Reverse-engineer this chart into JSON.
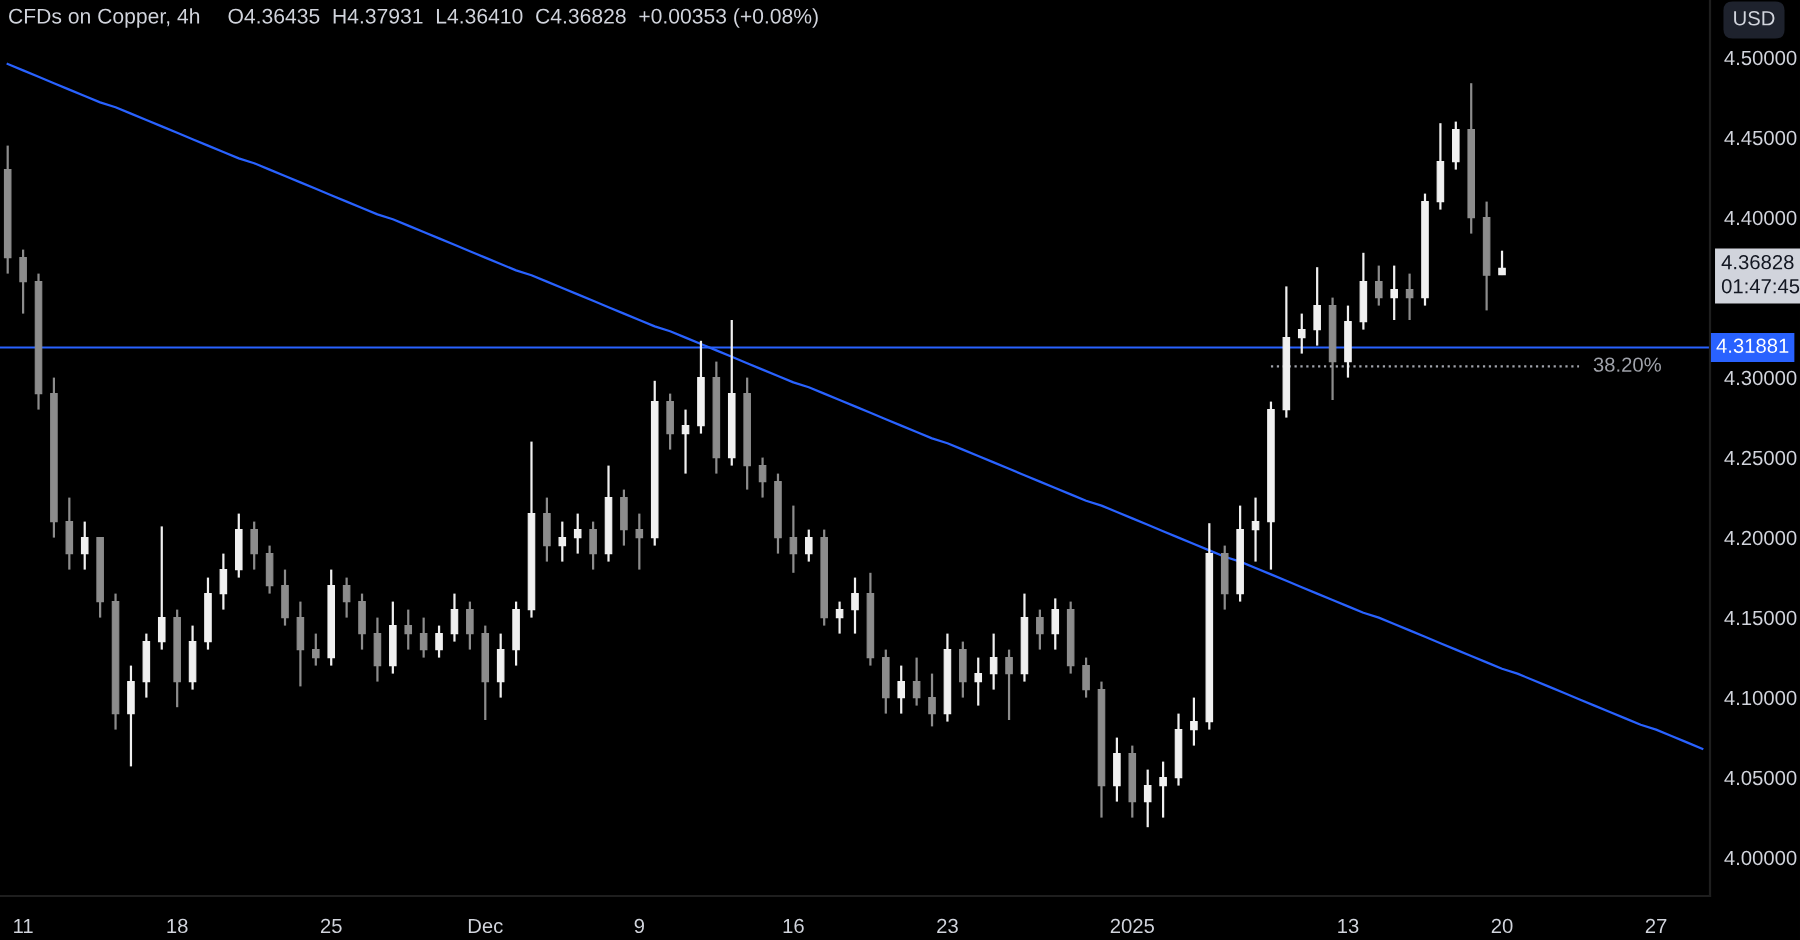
{
  "chart_data": {
    "type": "candlestick",
    "title": "CFDs on Copper, 4h",
    "subtitle": "O4.36435  H4.37931  L4.36410  C4.36828  +0.00353 (+0.08%)",
    "ylabel": "USD",
    "categories": [
      null,
      "11",
      null,
      null,
      null,
      null,
      null,
      null,
      null,
      null,
      null,
      "18",
      null,
      null,
      null,
      null,
      null,
      null,
      null,
      null,
      null,
      "25",
      null,
      null,
      null,
      null,
      null,
      null,
      null,
      null,
      null,
      "Dec",
      null,
      null,
      null,
      null,
      null,
      null,
      null,
      null,
      null,
      "9",
      null,
      null,
      null,
      null,
      null,
      null,
      null,
      null,
      null,
      "16",
      null,
      null,
      null,
      null,
      null,
      null,
      null,
      null,
      null,
      "23",
      null,
      null,
      null,
      null,
      null,
      null,
      null,
      null,
      null,
      null,
      null,
      "2025",
      null,
      null,
      null,
      null,
      null,
      null,
      null,
      null,
      null,
      null,
      null,
      null,
      null,
      "13",
      null,
      null,
      null,
      null,
      null,
      null,
      null,
      null,
      null,
      "20",
      null,
      null,
      null,
      null,
      null,
      null,
      null,
      null,
      null,
      "27",
      null,
      null,
      null
    ],
    "ohlc": [
      [
        4.43,
        4.445,
        4.365,
        4.375
      ],
      [
        4.375,
        4.38,
        4.34,
        4.36
      ],
      [
        4.36,
        4.365,
        4.28,
        4.29
      ],
      [
        4.29,
        4.3,
        4.2,
        4.21
      ],
      [
        4.21,
        4.225,
        4.18,
        4.19
      ],
      [
        4.19,
        4.21,
        4.18,
        4.2
      ],
      [
        4.2,
        4.2,
        4.15,
        4.16
      ],
      [
        4.16,
        4.165,
        4.08,
        4.09
      ],
      [
        4.09,
        4.12,
        4.057,
        4.11
      ],
      [
        4.11,
        4.14,
        4.1,
        4.135
      ],
      [
        4.135,
        4.207,
        4.13,
        4.15
      ],
      [
        4.15,
        4.155,
        4.094,
        4.11
      ],
      [
        4.11,
        4.145,
        4.105,
        4.135
      ],
      [
        4.135,
        4.175,
        4.13,
        4.165
      ],
      [
        4.165,
        4.19,
        4.155,
        4.18
      ],
      [
        4.18,
        4.215,
        4.175,
        4.205
      ],
      [
        4.205,
        4.21,
        4.18,
        4.19
      ],
      [
        4.19,
        4.195,
        4.165,
        4.17
      ],
      [
        4.17,
        4.18,
        4.145,
        4.15
      ],
      [
        4.15,
        4.16,
        4.107,
        4.13
      ],
      [
        4.13,
        4.14,
        4.12,
        4.125
      ],
      [
        4.125,
        4.18,
        4.12,
        4.17
      ],
      [
        4.17,
        4.175,
        4.15,
        4.16
      ],
      [
        4.16,
        4.165,
        4.13,
        4.14
      ],
      [
        4.14,
        4.15,
        4.11,
        4.12
      ],
      [
        4.12,
        4.16,
        4.115,
        4.145
      ],
      [
        4.145,
        4.155,
        4.13,
        4.14
      ],
      [
        4.14,
        4.15,
        4.125,
        4.13
      ],
      [
        4.13,
        4.145,
        4.125,
        4.14
      ],
      [
        4.14,
        4.165,
        4.135,
        4.155
      ],
      [
        4.155,
        4.16,
        4.13,
        4.14
      ],
      [
        4.14,
        4.145,
        4.086,
        4.11
      ],
      [
        4.11,
        4.14,
        4.1,
        4.13
      ],
      [
        4.13,
        4.16,
        4.12,
        4.155
      ],
      [
        4.155,
        4.26,
        4.15,
        4.215
      ],
      [
        4.215,
        4.225,
        4.185,
        4.195
      ],
      [
        4.195,
        4.21,
        4.185,
        4.2
      ],
      [
        4.2,
        4.215,
        4.19,
        4.205
      ],
      [
        4.205,
        4.21,
        4.18,
        4.19
      ],
      [
        4.19,
        4.245,
        4.185,
        4.225
      ],
      [
        4.225,
        4.23,
        4.195,
        4.205
      ],
      [
        4.205,
        4.215,
        4.18,
        4.2
      ],
      [
        4.2,
        4.298,
        4.195,
        4.285
      ],
      [
        4.285,
        4.29,
        4.255,
        4.265
      ],
      [
        4.265,
        4.28,
        4.24,
        4.27
      ],
      [
        4.27,
        4.323,
        4.265,
        4.3
      ],
      [
        4.3,
        4.31,
        4.24,
        4.25
      ],
      [
        4.25,
        4.336,
        4.245,
        4.29
      ],
      [
        4.29,
        4.3,
        4.23,
        4.245
      ],
      [
        4.245,
        4.25,
        4.225,
        4.235
      ],
      [
        4.235,
        4.24,
        4.19,
        4.2
      ],
      [
        4.2,
        4.22,
        4.178,
        4.19
      ],
      [
        4.19,
        4.205,
        4.185,
        4.2
      ],
      [
        4.2,
        4.205,
        4.145,
        4.15
      ],
      [
        4.15,
        4.16,
        4.14,
        4.155
      ],
      [
        4.155,
        4.175,
        4.14,
        4.165
      ],
      [
        4.165,
        4.178,
        4.12,
        4.125
      ],
      [
        4.125,
        4.13,
        4.09,
        4.1
      ],
      [
        4.1,
        4.12,
        4.09,
        4.11
      ],
      [
        4.11,
        4.125,
        4.095,
        4.1
      ],
      [
        4.1,
        4.115,
        4.082,
        4.09
      ],
      [
        4.09,
        4.14,
        4.085,
        4.13
      ],
      [
        4.13,
        4.135,
        4.1,
        4.11
      ],
      [
        4.11,
        4.125,
        4.095,
        4.115
      ],
      [
        4.115,
        4.14,
        4.105,
        4.125
      ],
      [
        4.125,
        4.13,
        4.086,
        4.115
      ],
      [
        4.115,
        4.165,
        4.11,
        4.15
      ],
      [
        4.15,
        4.155,
        4.13,
        4.14
      ],
      [
        4.14,
        4.162,
        4.13,
        4.155
      ],
      [
        4.155,
        4.16,
        4.115,
        4.12
      ],
      [
        4.12,
        4.125,
        4.1,
        4.105
      ],
      [
        4.105,
        4.11,
        4.025,
        4.045
      ],
      [
        4.045,
        4.075,
        4.035,
        4.065
      ],
      [
        4.065,
        4.07,
        4.025,
        4.035
      ],
      [
        4.035,
        4.055,
        4.019,
        4.045
      ],
      [
        4.045,
        4.06,
        4.025,
        4.05
      ],
      [
        4.05,
        4.09,
        4.045,
        4.08
      ],
      [
        4.08,
        4.1,
        4.07,
        4.085
      ],
      [
        4.085,
        4.209,
        4.08,
        4.19
      ],
      [
        4.19,
        4.195,
        4.155,
        4.165
      ],
      [
        4.165,
        4.22,
        4.16,
        4.205
      ],
      [
        4.205,
        4.225,
        4.185,
        4.21
      ],
      [
        4.21,
        4.285,
        4.18,
        4.28
      ],
      [
        4.28,
        4.357,
        4.275,
        4.325
      ],
      [
        4.325,
        4.34,
        4.315,
        4.33
      ],
      [
        4.33,
        4.369,
        4.32,
        4.345
      ],
      [
        4.345,
        4.35,
        4.286,
        4.31
      ],
      [
        4.31,
        4.345,
        4.3,
        4.335
      ],
      [
        4.335,
        4.378,
        4.33,
        4.36
      ],
      [
        4.36,
        4.37,
        4.345,
        4.35
      ],
      [
        4.35,
        4.37,
        4.336,
        4.355
      ],
      [
        4.355,
        4.365,
        4.336,
        4.35
      ],
      [
        4.35,
        4.415,
        4.345,
        4.41
      ],
      [
        4.41,
        4.459,
        4.405,
        4.435
      ],
      [
        4.435,
        4.46,
        4.43,
        4.455
      ],
      [
        4.455,
        4.484,
        4.39,
        4.4
      ],
      [
        4.4,
        4.41,
        4.342,
        4.364
      ],
      [
        4.36435,
        4.37931,
        4.3641,
        4.36828
      ],
      null,
      null,
      null,
      null,
      null,
      null,
      null,
      null,
      null,
      null,
      null,
      null,
      null
    ],
    "colors": [
      "#8c8c8c",
      "#8c8c8c",
      "#8c8c8c",
      "#8c8c8c",
      "#8c8c8c",
      "#f0f0f0",
      "#8c8c8c",
      "#8c8c8c",
      "#f0f0f0",
      "#f0f0f0",
      "#f0f0f0",
      "#8c8c8c",
      "#f0f0f0",
      "#f0f0f0",
      "#f0f0f0",
      "#f0f0f0",
      "#8c8c8c",
      "#8c8c8c",
      "#8c8c8c",
      "#8c8c8c",
      "#8c8c8c",
      "#f0f0f0",
      "#8c8c8c",
      "#8c8c8c",
      "#8c8c8c",
      "#f0f0f0",
      "#8c8c8c",
      "#8c8c8c",
      "#f0f0f0",
      "#f0f0f0",
      "#8c8c8c",
      "#8c8c8c",
      "#f0f0f0",
      "#f0f0f0",
      "#f0f0f0",
      "#8c8c8c",
      "#f0f0f0",
      "#f0f0f0",
      "#8c8c8c",
      "#f0f0f0",
      "#8c8c8c",
      "#8c8c8c",
      "#f0f0f0",
      "#8c8c8c",
      "#f0f0f0",
      "#f0f0f0",
      "#8c8c8c",
      "#f0f0f0",
      "#8c8c8c",
      "#8c8c8c",
      "#8c8c8c",
      "#8c8c8c",
      "#f0f0f0",
      "#8c8c8c",
      "#f0f0f0",
      "#f0f0f0",
      "#8c8c8c",
      "#8c8c8c",
      "#f0f0f0",
      "#8c8c8c",
      "#8c8c8c",
      "#f0f0f0",
      "#8c8c8c",
      "#f0f0f0",
      "#f0f0f0",
      "#8c8c8c",
      "#f0f0f0",
      "#8c8c8c",
      "#f0f0f0",
      "#8c8c8c",
      "#8c8c8c",
      "#8c8c8c",
      "#f0f0f0",
      "#8c8c8c",
      "#f0f0f0",
      "#f0f0f0",
      "#f0f0f0",
      "#f0f0f0",
      "#f0f0f0",
      "#8c8c8c",
      "#f0f0f0",
      "#f0f0f0",
      "#f0f0f0",
      "#f0f0f0",
      "#f0f0f0",
      "#f0f0f0",
      "#8c8c8c",
      "#f0f0f0",
      "#f0f0f0",
      "#8c8c8c",
      "#f0f0f0",
      "#8c8c8c",
      "#f0f0f0",
      "#f0f0f0",
      "#f0f0f0",
      "#8c8c8c",
      "#8c8c8c",
      "#f0f0f0",
      null,
      null,
      null,
      null,
      null,
      null,
      null,
      null,
      null,
      null,
      null,
      null,
      null
    ],
    "series": [
      {
        "type": "line",
        "color": "#2962ff",
        "values": [
          4.496,
          4.492,
          4.488,
          4.484,
          4.48,
          4.476,
          4.472,
          4.469,
          4.465,
          4.461,
          4.457,
          4.453,
          4.449,
          4.445,
          4.441,
          4.437,
          4.434,
          4.43,
          4.426,
          4.422,
          4.418,
          4.414,
          4.41,
          4.406,
          4.402,
          4.399,
          4.395,
          4.391,
          4.387,
          4.383,
          4.379,
          4.375,
          4.371,
          4.367,
          4.364,
          4.36,
          4.356,
          4.352,
          4.348,
          4.344,
          4.34,
          4.336,
          4.332,
          4.329,
          4.325,
          4.321,
          4.317,
          4.313,
          4.309,
          4.305,
          4.301,
          4.297,
          4.294,
          4.29,
          4.286,
          4.282,
          4.278,
          4.274,
          4.27,
          4.266,
          4.262,
          4.259,
          4.255,
          4.251,
          4.247,
          4.243,
          4.239,
          4.235,
          4.231,
          4.227,
          4.223,
          4.22,
          4.216,
          4.212,
          4.208,
          4.204,
          4.2,
          4.196,
          4.192,
          4.188,
          4.185,
          4.181,
          4.177,
          4.173,
          4.169,
          4.165,
          4.161,
          4.157,
          4.153,
          4.15,
          4.146,
          4.142,
          4.138,
          4.134,
          4.13,
          4.126,
          4.122,
          4.118,
          4.115,
          4.111,
          4.107,
          4.103,
          4.099,
          4.095,
          4.091,
          4.087,
          4.083,
          4.08,
          4.076,
          4.072,
          4.068
        ]
      },
      {
        "type": "line",
        "name": "38.20%",
        "color": "#a0a3ab",
        "line_style": "dotted",
        "values": [
          null,
          null,
          null,
          null,
          null,
          null,
          null,
          null,
          null,
          null,
          null,
          null,
          null,
          null,
          null,
          null,
          null,
          null,
          null,
          null,
          null,
          null,
          null,
          null,
          null,
          null,
          null,
          null,
          null,
          null,
          null,
          null,
          null,
          null,
          null,
          null,
          null,
          null,
          null,
          null,
          null,
          null,
          null,
          null,
          null,
          null,
          null,
          null,
          null,
          null,
          null,
          null,
          null,
          null,
          null,
          null,
          null,
          null,
          null,
          null,
          null,
          null,
          null,
          null,
          null,
          null,
          null,
          null,
          null,
          null,
          null,
          null,
          null,
          null,
          null,
          null,
          null,
          null,
          null,
          null,
          null,
          null,
          4.307,
          4.307,
          4.307,
          4.307,
          4.307,
          4.307,
          4.307,
          4.307,
          4.307,
          4.307,
          4.307,
          4.307,
          4.307,
          4.307,
          4.307,
          4.307,
          4.307,
          4.307,
          4.307,
          4.307,
          4.307,
          null,
          null,
          null,
          null,
          null,
          null,
          null,
          null
        ]
      }
    ],
    "ref_lines": [
      {
        "axis": "y",
        "value": 4.31881,
        "label": "4.31881",
        "color": "#2962ff"
      }
    ],
    "annotations": [
      "4.36828\n01:47:45"
    ],
    "ylim": [
      3.976,
      4.536
    ],
    "yticks": [
      {
        "value": 4.0,
        "label": "4.00000"
      },
      {
        "value": 4.05,
        "label": "4.05000"
      },
      {
        "value": 4.1,
        "label": "4.10000"
      },
      {
        "value": 4.15,
        "label": "4.15000"
      },
      {
        "value": 4.2,
        "label": "4.20000"
      },
      {
        "value": 4.25,
        "label": "4.25000"
      },
      {
        "value": 4.3,
        "label": "4.30000"
      },
      {
        "value": 4.4,
        "label": "4.40000"
      },
      {
        "value": 4.45,
        "label": "4.45000"
      },
      {
        "value": 4.5,
        "label": "4.50000"
      }
    ]
  }
}
